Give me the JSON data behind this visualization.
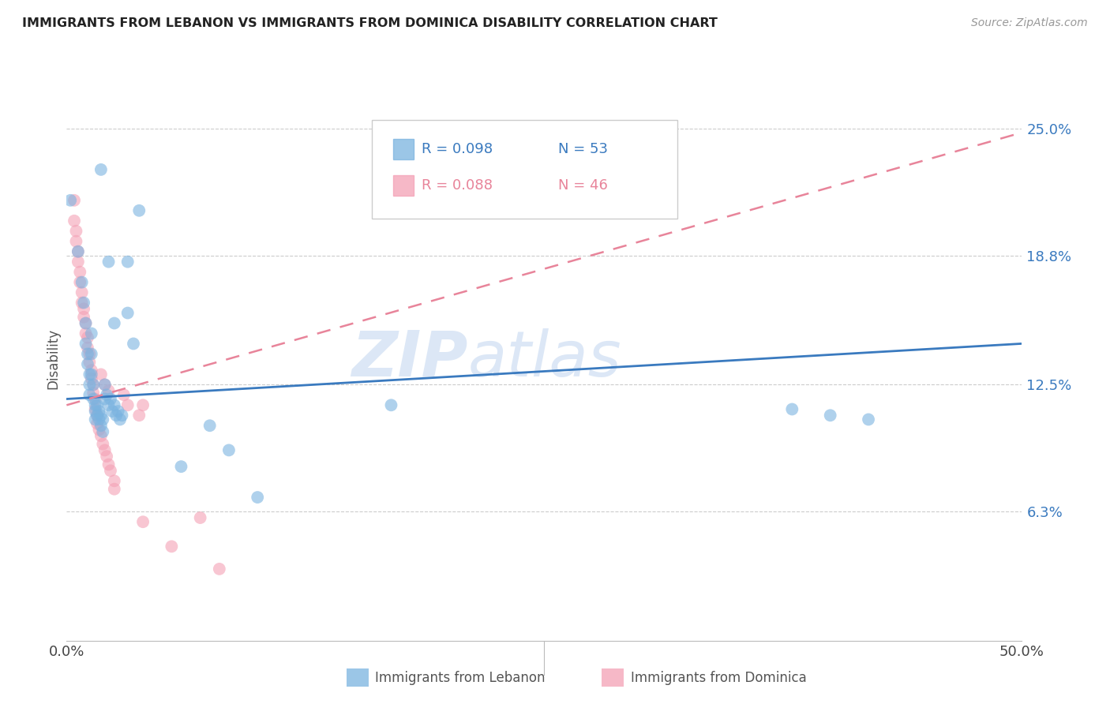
{
  "title": "IMMIGRANTS FROM LEBANON VS IMMIGRANTS FROM DOMINICA DISABILITY CORRELATION CHART",
  "source": "Source: ZipAtlas.com",
  "ylabel": "Disability",
  "yticks": [
    0.063,
    0.125,
    0.188,
    0.25
  ],
  "ytick_labels": [
    "6.3%",
    "12.5%",
    "18.8%",
    "25.0%"
  ],
  "xmin": 0.0,
  "xmax": 0.5,
  "ymin": 0.0,
  "ymax": 0.275,
  "color_lebanon": "#7ab3e0",
  "color_dominica": "#f4a0b5",
  "color_lebanon_line": "#3a7abf",
  "color_dominica_line": "#e8849a",
  "watermark_zip": "ZIP",
  "watermark_atlas": "atlas",
  "lebanon_x": [
    0.002,
    0.006,
    0.018,
    0.022,
    0.025,
    0.032,
    0.032,
    0.035,
    0.038,
    0.008,
    0.009,
    0.01,
    0.01,
    0.011,
    0.011,
    0.012,
    0.012,
    0.012,
    0.013,
    0.013,
    0.013,
    0.014,
    0.014,
    0.015,
    0.015,
    0.015,
    0.016,
    0.016,
    0.017,
    0.017,
    0.018,
    0.018,
    0.019,
    0.019,
    0.02,
    0.02,
    0.021,
    0.022,
    0.023,
    0.024,
    0.025,
    0.026,
    0.027,
    0.028,
    0.029,
    0.06,
    0.075,
    0.085,
    0.1,
    0.17,
    0.38,
    0.4,
    0.42
  ],
  "lebanon_y": [
    0.215,
    0.19,
    0.23,
    0.185,
    0.155,
    0.185,
    0.16,
    0.145,
    0.21,
    0.175,
    0.165,
    0.155,
    0.145,
    0.14,
    0.135,
    0.13,
    0.125,
    0.12,
    0.15,
    0.14,
    0.13,
    0.125,
    0.118,
    0.115,
    0.112,
    0.108,
    0.115,
    0.11,
    0.112,
    0.108,
    0.11,
    0.105,
    0.108,
    0.102,
    0.125,
    0.118,
    0.12,
    0.115,
    0.118,
    0.112,
    0.115,
    0.11,
    0.112,
    0.108,
    0.11,
    0.085,
    0.105,
    0.093,
    0.07,
    0.115,
    0.113,
    0.11,
    0.108
  ],
  "dominica_x": [
    0.004,
    0.004,
    0.005,
    0.005,
    0.006,
    0.006,
    0.007,
    0.007,
    0.008,
    0.008,
    0.009,
    0.009,
    0.01,
    0.01,
    0.011,
    0.011,
    0.012,
    0.012,
    0.013,
    0.013,
    0.014,
    0.014,
    0.015,
    0.015,
    0.016,
    0.016,
    0.017,
    0.018,
    0.019,
    0.02,
    0.021,
    0.022,
    0.023,
    0.025,
    0.025,
    0.03,
    0.032,
    0.038,
    0.04,
    0.018,
    0.02,
    0.022,
    0.04,
    0.055,
    0.07,
    0.08
  ],
  "dominica_y": [
    0.215,
    0.205,
    0.2,
    0.195,
    0.19,
    0.185,
    0.18,
    0.175,
    0.17,
    0.165,
    0.162,
    0.158,
    0.155,
    0.15,
    0.148,
    0.143,
    0.14,
    0.136,
    0.132,
    0.128,
    0.125,
    0.121,
    0.118,
    0.113,
    0.11,
    0.106,
    0.103,
    0.1,
    0.096,
    0.093,
    0.09,
    0.086,
    0.083,
    0.078,
    0.074,
    0.12,
    0.115,
    0.11,
    0.115,
    0.13,
    0.125,
    0.122,
    0.058,
    0.046,
    0.06,
    0.035
  ],
  "lebanon_line_x": [
    0.0,
    0.5
  ],
  "lebanon_line_y": [
    0.118,
    0.145
  ],
  "dominica_line_x": [
    0.0,
    0.5
  ],
  "dominica_line_y": [
    0.115,
    0.248
  ]
}
